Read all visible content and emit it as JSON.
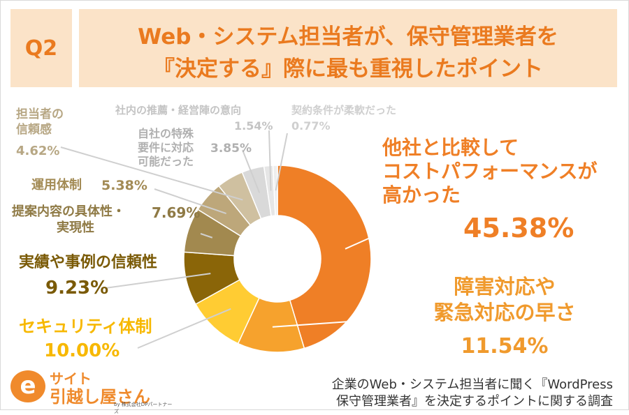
{
  "header": {
    "question": "Q2",
    "title_line1": "Web・システム担当者が、保守管理業者を",
    "title_line2": "『決定する』際に最も重視したポイント"
  },
  "chart_data": {
    "type": "pie",
    "donut": true,
    "start": "12 o'clock",
    "direction": "clockwise",
    "slices": [
      {
        "label": "他社と比較してコストパフォーマンスが高かった",
        "value": 45.38,
        "value_text": "45.38%",
        "color": "#ef7f26"
      },
      {
        "label": "障害対応や緊急対応の早さ",
        "value": 11.54,
        "value_text": "11.54%",
        "color": "#f6a22d"
      },
      {
        "label": "セキュリティ体制",
        "value": 10.0,
        "value_text": "10.00%",
        "color": "#ffcc33"
      },
      {
        "label": "実績や事例の信頼性",
        "value": 9.23,
        "value_text": "9.23%",
        "color": "#8a6508"
      },
      {
        "label": "提案内容の具体性・実現性",
        "value": 7.69,
        "value_text": "7.69%",
        "color": "#a2894f"
      },
      {
        "label": "運用体制",
        "value": 5.38,
        "value_text": "5.38%",
        "color": "#bda77a"
      },
      {
        "label": "担当者の信頼感",
        "value": 4.62,
        "value_text": "4.62%",
        "color": "#cfc0a0"
      },
      {
        "label": "自社の特殊要件に対応可能だった",
        "value": 3.85,
        "value_text": "3.85%",
        "color": "#d9d9d9"
      },
      {
        "label": "社内の推薦・経営陣の意向",
        "value": 1.54,
        "value_text": "1.54%",
        "color": "#e6e6e6"
      },
      {
        "label": "契約条件が柔軟だった",
        "value": 0.77,
        "value_text": "0.77%",
        "color": "#eeeeee"
      }
    ]
  },
  "labels": {
    "cost": {
      "line1": "他社と比較して",
      "line2": "コストパフォーマンスが",
      "line3": "高かった"
    },
    "speed": {
      "line1": "障害対応や",
      "line2": "緊急対応の早さ"
    },
    "security": {
      "line1": "セキュリティ体制"
    },
    "track": {
      "line1": "実績や事例の信頼性"
    },
    "proposal": {
      "line1": "提案内容の具体性・",
      "line2": "実現性"
    },
    "ops": {
      "line1": "運用体制"
    },
    "trust": {
      "line1": "担当者の",
      "line2": "信頼感"
    },
    "special": {
      "line1": "自社の特殊",
      "line2": "要件に対応",
      "line3": "可能だった"
    },
    "recommend": {
      "line1": "社内の推薦・経営陣の意向"
    },
    "contract": {
      "line1": "契約条件が柔軟だった"
    }
  },
  "logo": {
    "mark": "e",
    "line1": "サイト",
    "line2": "引越し屋さん",
    "sub": "by 株式会社DPパートナーズ"
  },
  "source": {
    "line1": "企業のWeb・システム担当者に聞く『WordPress",
    "line2": "保守管理業者』を決定するポイントに関する調査"
  }
}
